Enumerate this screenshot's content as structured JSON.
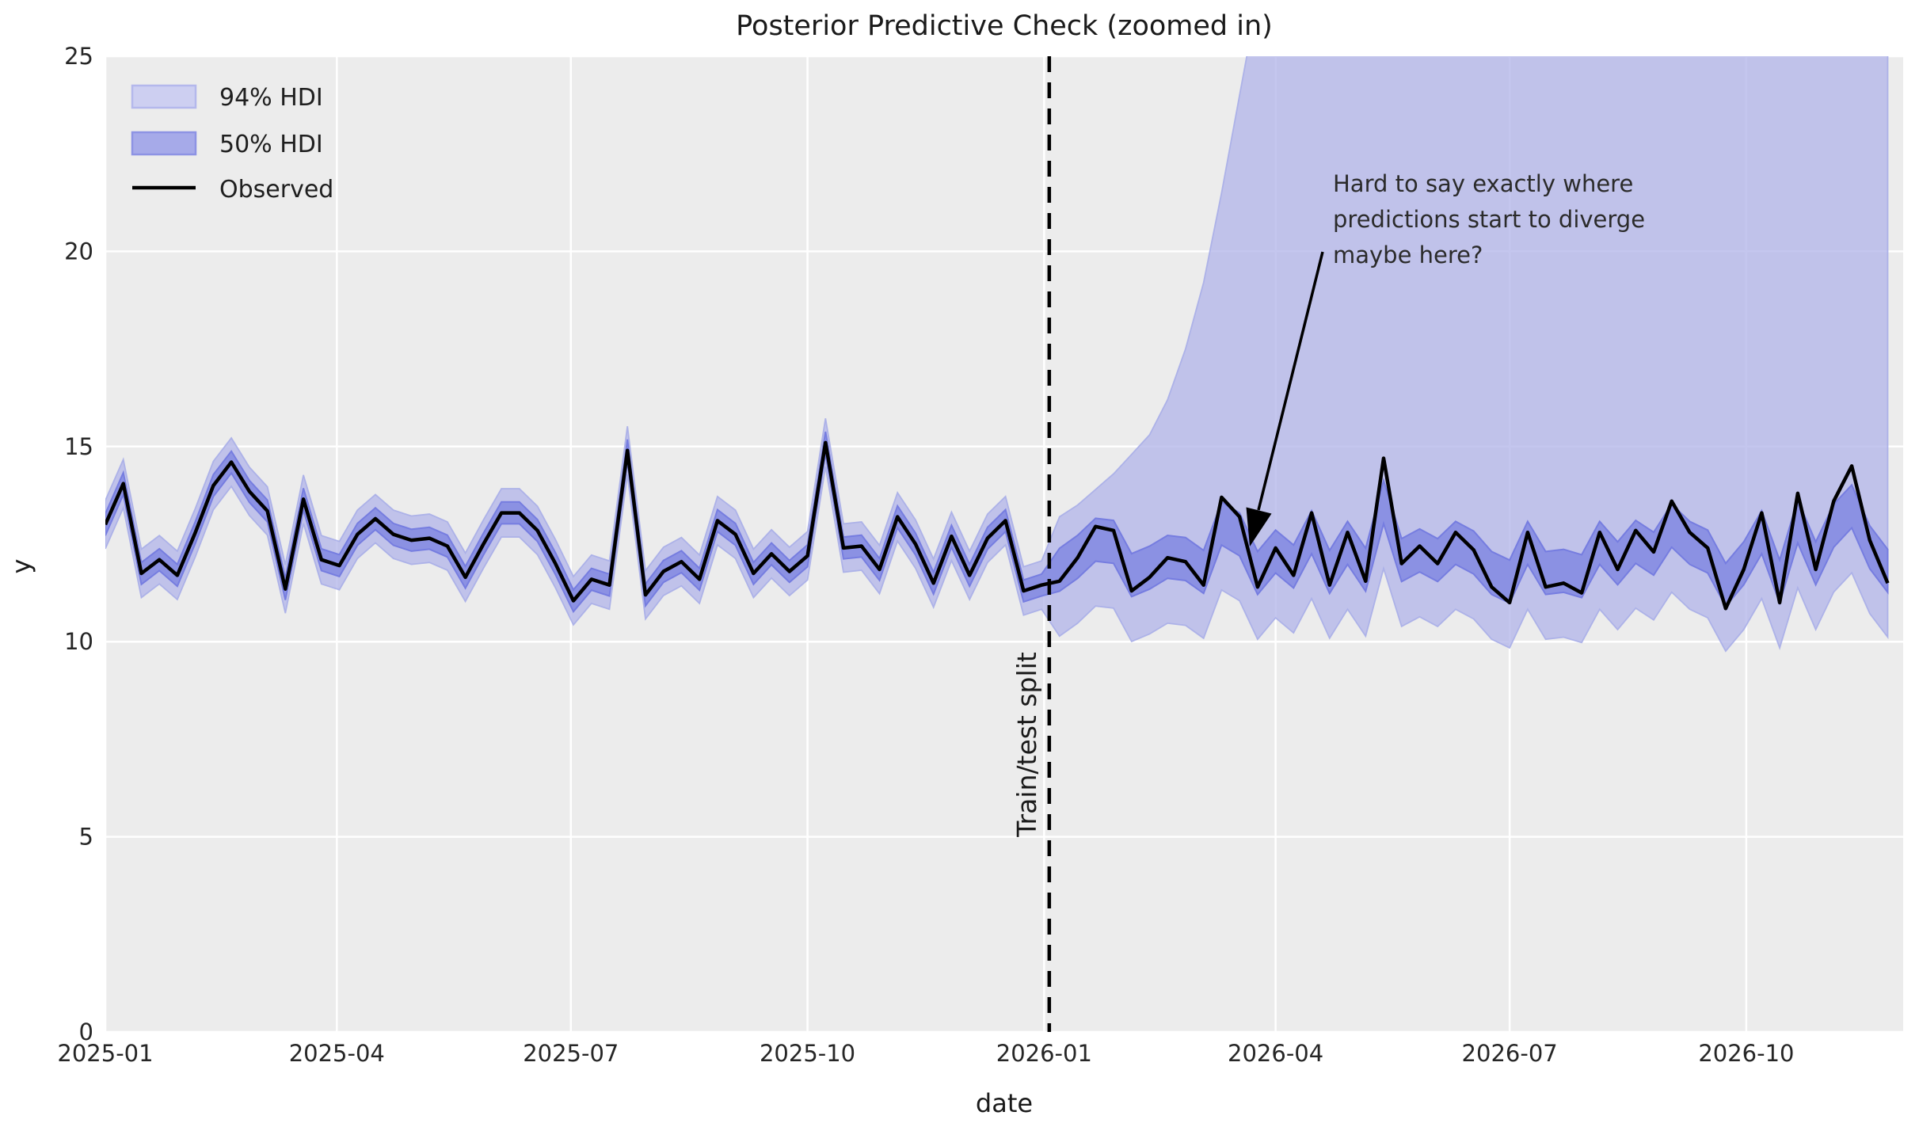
{
  "title": "Posterior Predictive Check (zoomed in)",
  "axes": {
    "xlabel": "date",
    "ylabel": "y"
  },
  "split_label": "Train/test split",
  "annotation": {
    "line1": "Hard to say exactly where",
    "line2": "predictions start to diverge",
    "line3": "maybe here?"
  },
  "legend": {
    "hdi94_label": "94% HDI",
    "hdi50_label": "50% HDI",
    "observed_label": "Observed"
  },
  "colors": {
    "figure_bg": "#ffffff",
    "plot_bg": "#ececec",
    "grid": "#ffffff",
    "hdi94_fill": "#b5b8ea",
    "hdi94_edge": "#a9aee8",
    "hdi50_fill": "#878de2",
    "hdi50_edge": "#767de0",
    "observed": "#000000",
    "split_line": "#000000",
    "legend94_fill": "#cdcff1",
    "legend94_edge": "#b4b8ec",
    "legend50_fill": "#a6aae9",
    "legend50_edge": "#8d93e4",
    "text": "#262626"
  },
  "chart_data": {
    "type": "line",
    "title": "Posterior Predictive Check (zoomed in)",
    "xlabel": "date",
    "ylabel": "y",
    "ylim": [
      0,
      25
    ],
    "yticks": [
      0,
      5,
      10,
      15,
      20,
      25
    ],
    "grid": true,
    "legend_position": "upper left",
    "x_start_date": "2025-01-01",
    "x_freq_days": 7,
    "xlim_days": [
      0,
      699
    ],
    "xticks": [
      {
        "label": "2025-01",
        "day": 0
      },
      {
        "label": "2025-04",
        "day": 90
      },
      {
        "label": "2025-07",
        "day": 181
      },
      {
        "label": "2025-10",
        "day": 273
      },
      {
        "label": "2026-01",
        "day": 365
      },
      {
        "label": "2026-04",
        "day": 455
      },
      {
        "label": "2026-07",
        "day": 546
      },
      {
        "label": "2026-10",
        "day": 638
      }
    ],
    "train_test_split_day": 367,
    "series": [
      {
        "name": "Observed",
        "values": [
          13.0,
          14.05,
          11.75,
          12.1,
          11.7,
          12.8,
          14.0,
          14.6,
          13.85,
          13.35,
          11.35,
          13.65,
          12.1,
          11.95,
          12.75,
          13.15,
          12.75,
          12.6,
          12.65,
          12.45,
          11.65,
          12.5,
          13.3,
          13.3,
          12.85,
          12.0,
          11.05,
          11.6,
          11.45,
          14.9,
          11.2,
          11.8,
          12.05,
          11.6,
          13.1,
          12.75,
          11.75,
          12.25,
          11.8,
          12.2,
          15.1,
          12.4,
          12.45,
          11.85,
          13.2,
          12.5,
          11.5,
          12.7,
          11.7,
          12.65,
          13.1,
          11.3,
          11.45,
          11.55,
          12.15,
          12.95,
          12.85,
          11.3,
          11.65,
          12.15,
          12.05,
          11.45,
          13.7,
          13.2,
          11.4,
          12.4,
          11.7,
          13.3,
          11.45,
          12.8,
          11.55,
          14.7,
          12.0,
          12.45,
          12.0,
          12.8,
          12.35,
          11.4,
          11.0,
          12.8,
          11.4,
          11.5,
          11.25,
          12.8,
          11.85,
          12.85,
          12.3,
          13.6,
          12.8,
          12.4,
          10.85,
          11.85,
          13.3,
          11.0,
          13.8,
          11.85,
          13.6,
          14.5,
          12.6,
          11.5
        ]
      }
    ],
    "hdi_bands": {
      "pre_split": {
        "last_index": 52,
        "half_width_94": 0.62,
        "half_width_50": 0.28
      },
      "post_split": {
        "center_base": 12.2,
        "center_scale": 0.55,
        "half_width_50": 0.55,
        "lower94_offset": 1.7,
        "upper94": [
          13.2,
          13.5,
          13.9,
          14.3,
          14.8,
          15.3,
          16.2,
          17.5,
          19.2,
          21.5,
          24.0,
          26.5,
          29,
          31,
          33,
          35,
          36,
          37,
          38,
          38,
          38,
          38,
          38,
          38,
          38,
          38,
          38,
          38,
          38,
          38,
          38,
          38,
          38,
          38,
          38,
          38,
          38,
          38,
          38,
          38,
          38,
          38,
          38,
          38,
          38,
          38,
          38
        ]
      }
    }
  }
}
